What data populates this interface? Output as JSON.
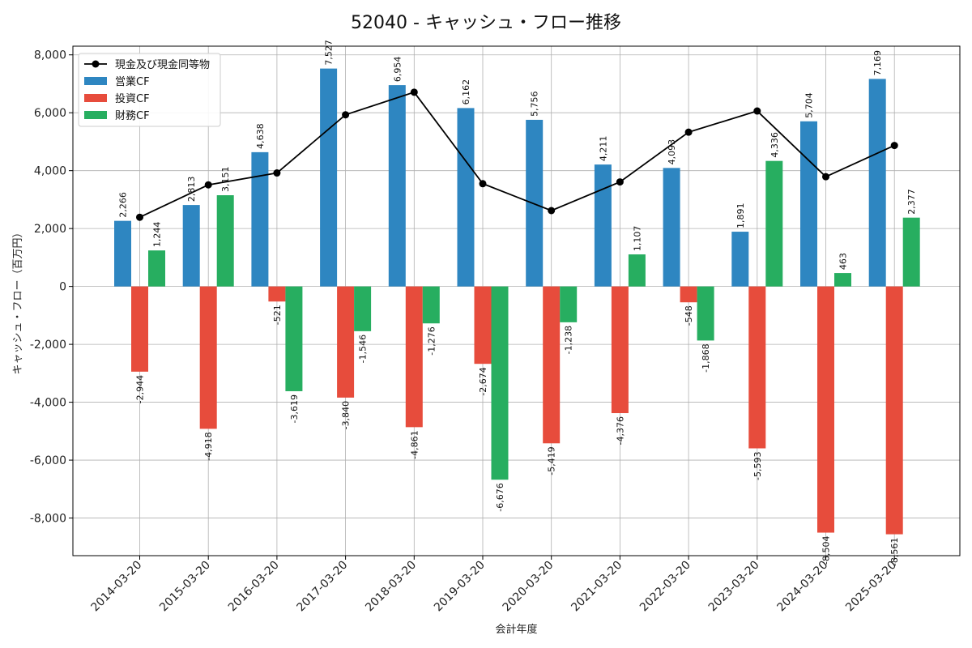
{
  "chart_data": {
    "type": "bar",
    "title": "52040 - キャッシュ・フロー推移",
    "xlabel": "会計年度",
    "ylabel": "キャッシュ・フロー（百万円）",
    "ylim": [
      -9300,
      8300
    ],
    "yticks": [
      8000,
      6000,
      4000,
      2000,
      0,
      -2000,
      -4000,
      -6000,
      -8000
    ],
    "ytick_labels": [
      "8,000",
      "6,000",
      "4,000",
      "2,000",
      "0",
      "-2,000",
      "-4,000",
      "-6,000",
      "-8,000"
    ],
    "grid": true,
    "legend_position": "top-left",
    "categories": [
      "2014-03-20",
      "2015-03-20",
      "2016-03-20",
      "2017-03-20",
      "2018-03-20",
      "2019-03-20",
      "2020-03-20",
      "2021-03-20",
      "2022-03-20",
      "2023-03-20",
      "2024-03-20",
      "2025-03-20"
    ],
    "series": [
      {
        "name": "営業CF",
        "kind": "bar",
        "color": "#2e86c1",
        "values": [
          2266,
          2813,
          4638,
          7527,
          6954,
          6162,
          5756,
          4211,
          4093,
          1891,
          5704,
          7169
        ],
        "labels": [
          "2,266",
          "2,813",
          "4,638",
          "7,527",
          "6,954",
          "6,162",
          "5,756",
          "4,211",
          "4,093",
          "1,891",
          "5,704",
          "7,169"
        ]
      },
      {
        "name": "投資CF",
        "kind": "bar",
        "color": "#e74c3c",
        "values": [
          -2944,
          -4918,
          -521,
          -3840,
          -4861,
          -2674,
          -5419,
          -4376,
          -548,
          -5593,
          -8504,
          -8561
        ],
        "labels": [
          "-2,944",
          "-4,918",
          "-521",
          "-3,840",
          "-4,861",
          "-2,674",
          "-5,419",
          "-4,376",
          "-548",
          "-5,593",
          "-8,504",
          "-8,561"
        ]
      },
      {
        "name": "財務CF",
        "kind": "bar",
        "color": "#27ae60",
        "values": [
          1244,
          3151,
          -3619,
          -1546,
          -1276,
          -6676,
          -1238,
          1107,
          -1868,
          4336,
          463,
          2377
        ],
        "labels": [
          "1,244",
          "3,151",
          "-3,619",
          "-1,546",
          "-1,276",
          "-6,676",
          "-1,238",
          "1,107",
          "-1,868",
          "4,336",
          "463",
          "2,377"
        ]
      },
      {
        "name": "現金及び現金同等物",
        "kind": "line",
        "color": "#000000",
        "values": [
          2390,
          3510,
          3920,
          5930,
          6710,
          3550,
          2620,
          3610,
          5330,
          6060,
          3790,
          4870
        ]
      }
    ]
  }
}
